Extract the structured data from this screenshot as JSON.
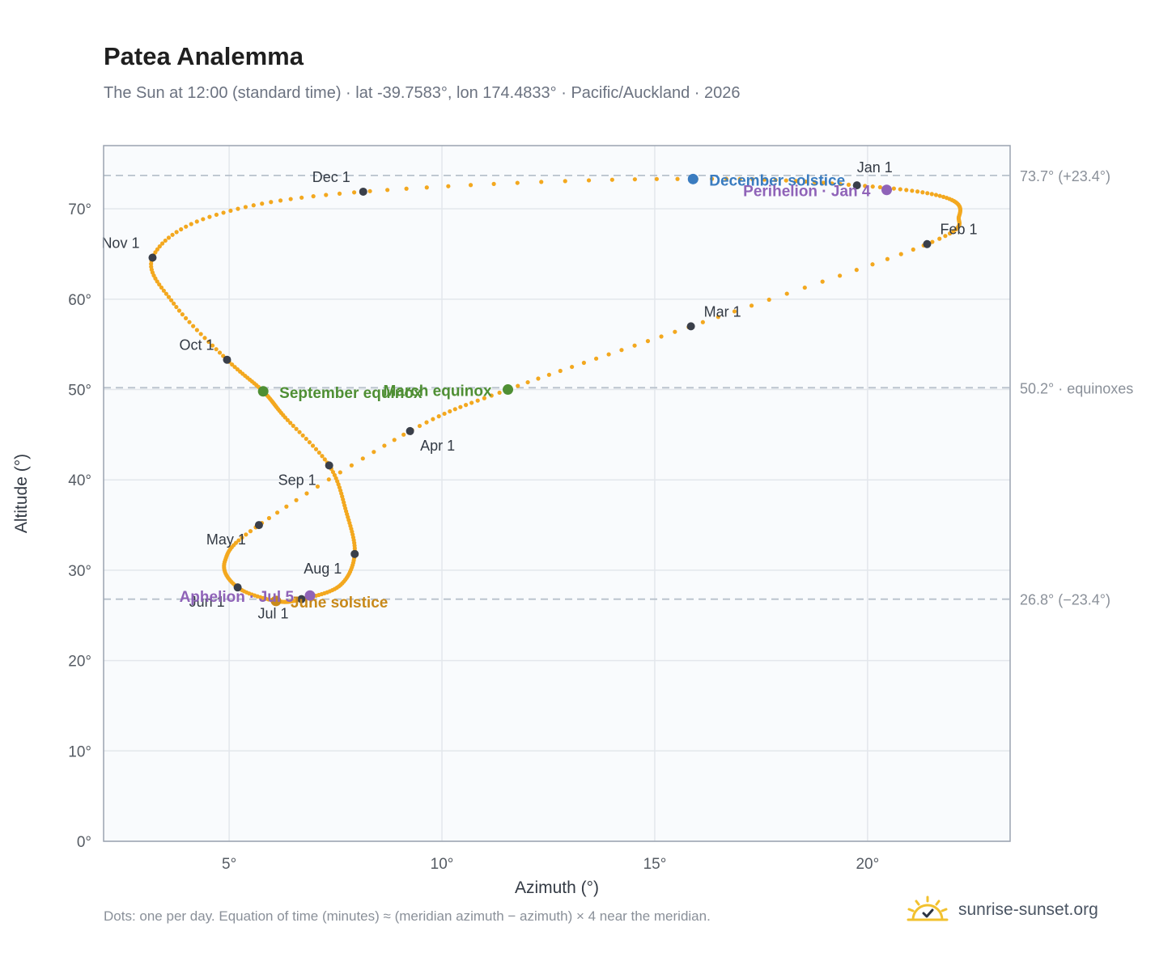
{
  "header": {
    "title": "Patea Analemma",
    "subtitle": "The Sun at 12:00 (standard time) · lat -39.7583°, lon 174.4833° · Pacific/Auckland · 2026"
  },
  "footer": {
    "note": "Dots: one per day. Equation of time (minutes) ≈ (meridian azimuth − azimuth) × 4 near the meridian.",
    "brand": "sunrise-sunset.org"
  },
  "colors": {
    "curve": "#f3a81f",
    "month_marker": "#3a3f4a",
    "december_solstice": "#3a7cc0",
    "june_solstice": "#c8891a",
    "equinox": "#4f8f34",
    "apsis": "#8f63b8",
    "reference_line": "#b8c1cc",
    "plot_bg": "#f9fbfd",
    "grid": "#e3e7ec",
    "frame": "#9aa3b0"
  },
  "chart_data": {
    "type": "scatter",
    "xlabel": "Azimuth (°)",
    "ylabel": "Altitude (°)",
    "xlim": [
      2.05,
      23.35
    ],
    "ylim": [
      0,
      77
    ],
    "x_ticks": [
      {
        "value": 5,
        "label": "5°"
      },
      {
        "value": 10,
        "label": "10°"
      },
      {
        "value": 15,
        "label": "15°"
      },
      {
        "value": 20,
        "label": "20°"
      }
    ],
    "y_ticks": [
      {
        "value": 0,
        "label": "0°"
      },
      {
        "value": 10,
        "label": "10°"
      },
      {
        "value": 20,
        "label": "20°"
      },
      {
        "value": 30,
        "label": "30°"
      },
      {
        "value": 40,
        "label": "40°"
      },
      {
        "value": 50,
        "label": "50°"
      },
      {
        "value": 60,
        "label": "60°"
      },
      {
        "value": 70,
        "label": "70°"
      }
    ],
    "grid": true,
    "reference_lines": [
      {
        "y": 73.7,
        "label": "73.7° (+23.4°)"
      },
      {
        "y": 50.2,
        "label": "50.2° · equinoxes"
      },
      {
        "y": 26.8,
        "label": "26.8° (−23.4°)"
      }
    ],
    "month_markers": [
      {
        "label": "Jan 1",
        "x": 19.75,
        "y": 72.6
      },
      {
        "label": "Feb 1",
        "x": 21.4,
        "y": 66.1
      },
      {
        "label": "Mar 1",
        "x": 15.85,
        "y": 57.0
      },
      {
        "label": "Apr 1",
        "x": 9.25,
        "y": 45.4
      },
      {
        "label": "May 1",
        "x": 5.7,
        "y": 35.0
      },
      {
        "label": "Jun 1",
        "x": 5.2,
        "y": 28.1
      },
      {
        "label": "Jul 1",
        "x": 6.7,
        "y": 26.8
      },
      {
        "label": "Aug 1",
        "x": 7.95,
        "y": 31.8
      },
      {
        "label": "Sep 1",
        "x": 7.35,
        "y": 41.6
      },
      {
        "label": "Oct 1",
        "x": 4.95,
        "y": 53.3
      },
      {
        "label": "Nov 1",
        "x": 3.2,
        "y": 64.6
      },
      {
        "label": "Dec 1",
        "x": 8.15,
        "y": 71.9
      }
    ],
    "events": [
      {
        "label": "December solstice",
        "x": 15.9,
        "y": 73.3,
        "kind": "december_solstice"
      },
      {
        "label": "Perihelion · Jan 4",
        "x": 20.45,
        "y": 72.1,
        "kind": "apsis"
      },
      {
        "label": "March equinox",
        "x": 11.55,
        "y": 50.0,
        "kind": "equinox"
      },
      {
        "label": "September equinox",
        "x": 5.8,
        "y": 49.8,
        "kind": "equinox"
      },
      {
        "label": "June solstice",
        "x": 6.1,
        "y": 26.6,
        "kind": "june_solstice"
      },
      {
        "label": "Aphelion · Jul 5",
        "x": 6.9,
        "y": 27.2,
        "kind": "apsis"
      }
    ],
    "curve_path": [
      {
        "date": "Jan 1",
        "x": 19.75,
        "y": 72.6
      },
      {
        "date": "Jan 15",
        "x": 21.8,
        "y": 71.3
      },
      {
        "date": "Jan 24",
        "x": 22.15,
        "y": 69.2
      },
      {
        "date": "Feb 1",
        "x": 21.4,
        "y": 66.1
      },
      {
        "date": "Mar 1",
        "x": 15.85,
        "y": 57.0
      },
      {
        "date": "Mar 20",
        "x": 11.55,
        "y": 50.0
      },
      {
        "date": "Apr 1",
        "x": 9.25,
        "y": 45.4
      },
      {
        "date": "May 1",
        "x": 5.7,
        "y": 35.0
      },
      {
        "date": "May 15",
        "x": 4.9,
        "y": 31.0
      },
      {
        "date": "Jun 1",
        "x": 5.2,
        "y": 28.1
      },
      {
        "date": "Jun 21",
        "x": 6.1,
        "y": 26.6
      },
      {
        "date": "Jul 1",
        "x": 6.7,
        "y": 26.8
      },
      {
        "date": "Jul 15",
        "x": 7.6,
        "y": 28.3
      },
      {
        "date": "Aug 1",
        "x": 7.95,
        "y": 31.8
      },
      {
        "date": "Aug 15",
        "x": 7.75,
        "y": 36.5
      },
      {
        "date": "Sep 1",
        "x": 7.35,
        "y": 41.6
      },
      {
        "date": "Sep 15",
        "x": 6.3,
        "y": 47.0
      },
      {
        "date": "Sep 23",
        "x": 5.8,
        "y": 49.8
      },
      {
        "date": "Oct 1",
        "x": 4.95,
        "y": 53.3
      },
      {
        "date": "Oct 15",
        "x": 3.7,
        "y": 59.5
      },
      {
        "date": "Nov 1",
        "x": 3.2,
        "y": 64.6
      },
      {
        "date": "Nov 15",
        "x": 4.6,
        "y": 69.2
      },
      {
        "date": "Dec 1",
        "x": 8.15,
        "y": 71.9
      },
      {
        "date": "Dec 21",
        "x": 15.9,
        "y": 73.3
      },
      {
        "date": "Jan 1",
        "x": 19.75,
        "y": 72.6
      }
    ]
  }
}
